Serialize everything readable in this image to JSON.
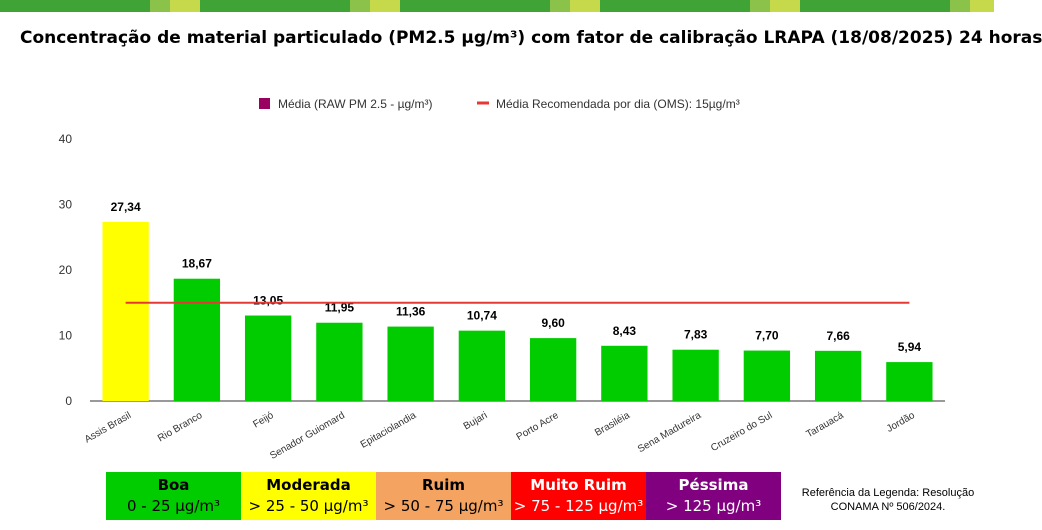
{
  "title": "Concentração de material particulado (PM2.5 µg/m³) com fator de calibração LRAPA  (18/08/2025) 24 horas",
  "chart_data": {
    "type": "bar",
    "categories": [
      "Assis Brasil",
      "Rio Branco",
      "Feijó",
      "Senador Guiomard",
      "Epitaciolandia",
      "Bujari",
      "Porto Acre",
      "Brasiléia",
      "Sena Madureira",
      "Cruzeiro do Sul",
      "Tarauacá",
      "Jordão"
    ],
    "series": [
      {
        "name": "Média (RAW PM 2.5 - µg/m³)",
        "values": [
          27.34,
          18.67,
          13.05,
          11.95,
          11.36,
          10.74,
          9.6,
          8.43,
          7.83,
          7.7,
          7.66,
          5.94
        ],
        "labels": [
          "27,34",
          "18,67",
          "13,05",
          "11,95",
          "11,36",
          "10,74",
          "9,60",
          "8,43",
          "7,83",
          "7,70",
          "7,66",
          "5,94"
        ],
        "bar_colors": [
          "#ffff00",
          "#00cc00",
          "#00cc00",
          "#00cc00",
          "#00cc00",
          "#00cc00",
          "#00cc00",
          "#00cc00",
          "#00cc00",
          "#00cc00",
          "#00cc00",
          "#00cc00"
        ]
      }
    ],
    "reference_line": {
      "name": "Média Recomendada por dia (OMS): 15µg/m³",
      "value": 15,
      "color": "#e53935"
    },
    "legend_swatch_color": "#99005f",
    "ylim": [
      0,
      40
    ],
    "yticks": [
      "0",
      "10",
      "20",
      "30",
      "40"
    ],
    "ytick_values": [
      0,
      10,
      20,
      30,
      40
    ],
    "grid": false,
    "legend_position": "top"
  },
  "quality_legend": [
    {
      "name": "Boa",
      "range": "0 - 25 µg/m³",
      "color": "#00cc00",
      "text_color": "#000000"
    },
    {
      "name": "Moderada",
      "range": "> 25 - 50 µg/m³",
      "color": "#ffff00",
      "text_color": "#000000"
    },
    {
      "name": "Ruim",
      "range": "> 50 - 75 µg/m³",
      "color": "#f4a460",
      "text_color": "#000000"
    },
    {
      "name": "Muito Ruim",
      "range": "> 75 - 125 µg/m³",
      "color": "#ff0000",
      "text_color": "#ffffff"
    },
    {
      "name": "Péssima",
      "range": "> 125 µg/m³",
      "color": "#800080",
      "text_color": "#ffffff"
    }
  ],
  "reference": "Referência da Legenda: Resolução CONAMA Nº 506/2024."
}
